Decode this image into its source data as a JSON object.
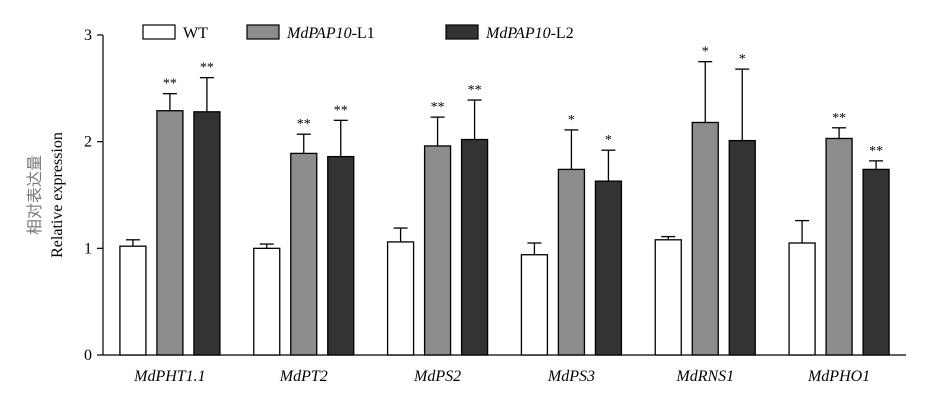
{
  "chart_data": {
    "type": "bar",
    "ylabel_cn": "相对表达量",
    "ylabel": "Relative expression",
    "ylim": [
      0,
      3
    ],
    "yticks": [
      "0",
      "1",
      "2",
      "3"
    ],
    "categories": [
      "MdPHT1.1",
      "MdPT2",
      "MdPS2",
      "MdPS3",
      "MdRNS1",
      "MdPHO1"
    ],
    "series": [
      {
        "name": "WT",
        "name_italic": "",
        "name_suffix": "WT",
        "color": "#ffffff",
        "values": [
          1.02,
          1.0,
          1.06,
          0.94,
          1.08,
          1.05
        ],
        "errors": [
          0.06,
          0.04,
          0.13,
          0.11,
          0.03,
          0.21
        ],
        "sig": [
          "",
          "",
          "",
          "",
          "",
          ""
        ]
      },
      {
        "name": "MdPAP10-L1",
        "name_italic": "MdPAP10",
        "name_suffix": "-L1",
        "color": "#8c8c8c",
        "values": [
          2.29,
          1.89,
          1.96,
          1.74,
          2.18,
          2.03
        ],
        "errors": [
          0.16,
          0.18,
          0.27,
          0.37,
          0.57,
          0.1
        ],
        "sig": [
          "**",
          "**",
          "**",
          "*",
          "*",
          "**"
        ]
      },
      {
        "name": "MdPAP10-L2",
        "name_italic": "MdPAP10",
        "name_suffix": "-L2",
        "color": "#333333",
        "values": [
          2.28,
          1.86,
          2.02,
          1.63,
          2.01,
          1.74
        ],
        "errors": [
          0.32,
          0.34,
          0.37,
          0.29,
          0.67,
          0.08
        ],
        "sig": [
          "**",
          "**",
          "**",
          "*",
          "*",
          "**"
        ]
      }
    ]
  }
}
